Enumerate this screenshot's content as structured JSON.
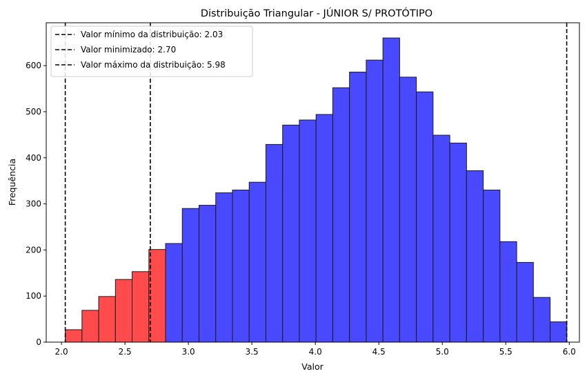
{
  "chart_data": {
    "type": "bar",
    "title": "Distribuição Triangular - JÚNIOR S/ PROTÓTIPO",
    "xlabel": "Valor",
    "ylabel": "Frequência",
    "xlim": [
      1.88,
      6.08
    ],
    "ylim": [
      0,
      693
    ],
    "x_ticks": [
      "2.0",
      "2.5",
      "3.0",
      "3.5",
      "4.0",
      "4.5",
      "5.0",
      "5.5",
      "6.0"
    ],
    "x_tick_values": [
      2.0,
      2.5,
      3.0,
      3.5,
      4.0,
      4.5,
      5.0,
      5.5,
      6.0
    ],
    "y_ticks": [
      "0",
      "100",
      "200",
      "300",
      "400",
      "500",
      "600"
    ],
    "y_tick_values": [
      0,
      100,
      200,
      300,
      400,
      500,
      600
    ],
    "bin_start": 2.03,
    "bin_width": 0.1317,
    "counts": [
      27,
      69,
      99,
      136,
      153,
      201,
      214,
      290,
      297,
      324,
      330,
      347,
      429,
      471,
      482,
      494,
      552,
      586,
      612,
      660,
      575,
      543,
      449,
      432,
      372,
      330,
      218,
      173,
      97,
      44
    ],
    "highlight_count": 6,
    "colors": {
      "highlight": "#ff4b4b",
      "main": "#4949ff",
      "edge": "#1a1a1a",
      "line": "#000000"
    },
    "vlines": [
      {
        "x": 2.03,
        "label": "Valor mínimo da distribuição: 2.03"
      },
      {
        "x": 2.7,
        "label": "Valor minimizado: 2.70"
      },
      {
        "x": 5.98,
        "label": "Valor máximo da distribuição: 5.98"
      }
    ],
    "legend_position": "top-left"
  }
}
